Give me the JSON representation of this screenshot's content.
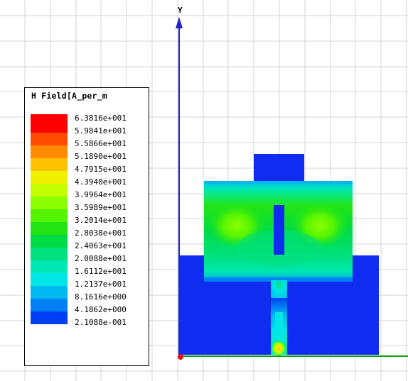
{
  "legend": {
    "title": "H Field[A_per_m",
    "entries": [
      {
        "value": "6.3816e+001",
        "color": "#ff0000"
      },
      {
        "value": "5.9841e+001",
        "color": "#ff4a00"
      },
      {
        "value": "5.5866e+001",
        "color": "#ff8a00"
      },
      {
        "value": "5.1890e+001",
        "color": "#ffc200"
      },
      {
        "value": "4.7915e+001",
        "color": "#f0f000"
      },
      {
        "value": "4.3940e+001",
        "color": "#c4ff00"
      },
      {
        "value": "3.9964e+001",
        "color": "#8cff00"
      },
      {
        "value": "3.5989e+001",
        "color": "#55f400"
      },
      {
        "value": "3.2014e+001",
        "color": "#22e414"
      },
      {
        "value": "2.8038e+001",
        "color": "#00dc46"
      },
      {
        "value": "2.4063e+001",
        "color": "#00e07e"
      },
      {
        "value": "2.0088e+001",
        "color": "#00e8b4"
      },
      {
        "value": "1.6112e+001",
        "color": "#00e6e6"
      },
      {
        "value": "1.2137e+001",
        "color": "#00b8f0"
      },
      {
        "value": "8.1616e+000",
        "color": "#0080f4"
      },
      {
        "value": "4.1862e+000",
        "color": "#0040f4"
      },
      {
        "value": "2.1088e-001",
        "color": "#0000f0"
      }
    ]
  },
  "axis": {
    "y_label": "Y"
  },
  "colors": {
    "grid": "#d4d4d4",
    "y_axis": "#2020c8",
    "x_axis": "#00a000",
    "origin": "#e01010",
    "metal": "#0f2cf0"
  }
}
